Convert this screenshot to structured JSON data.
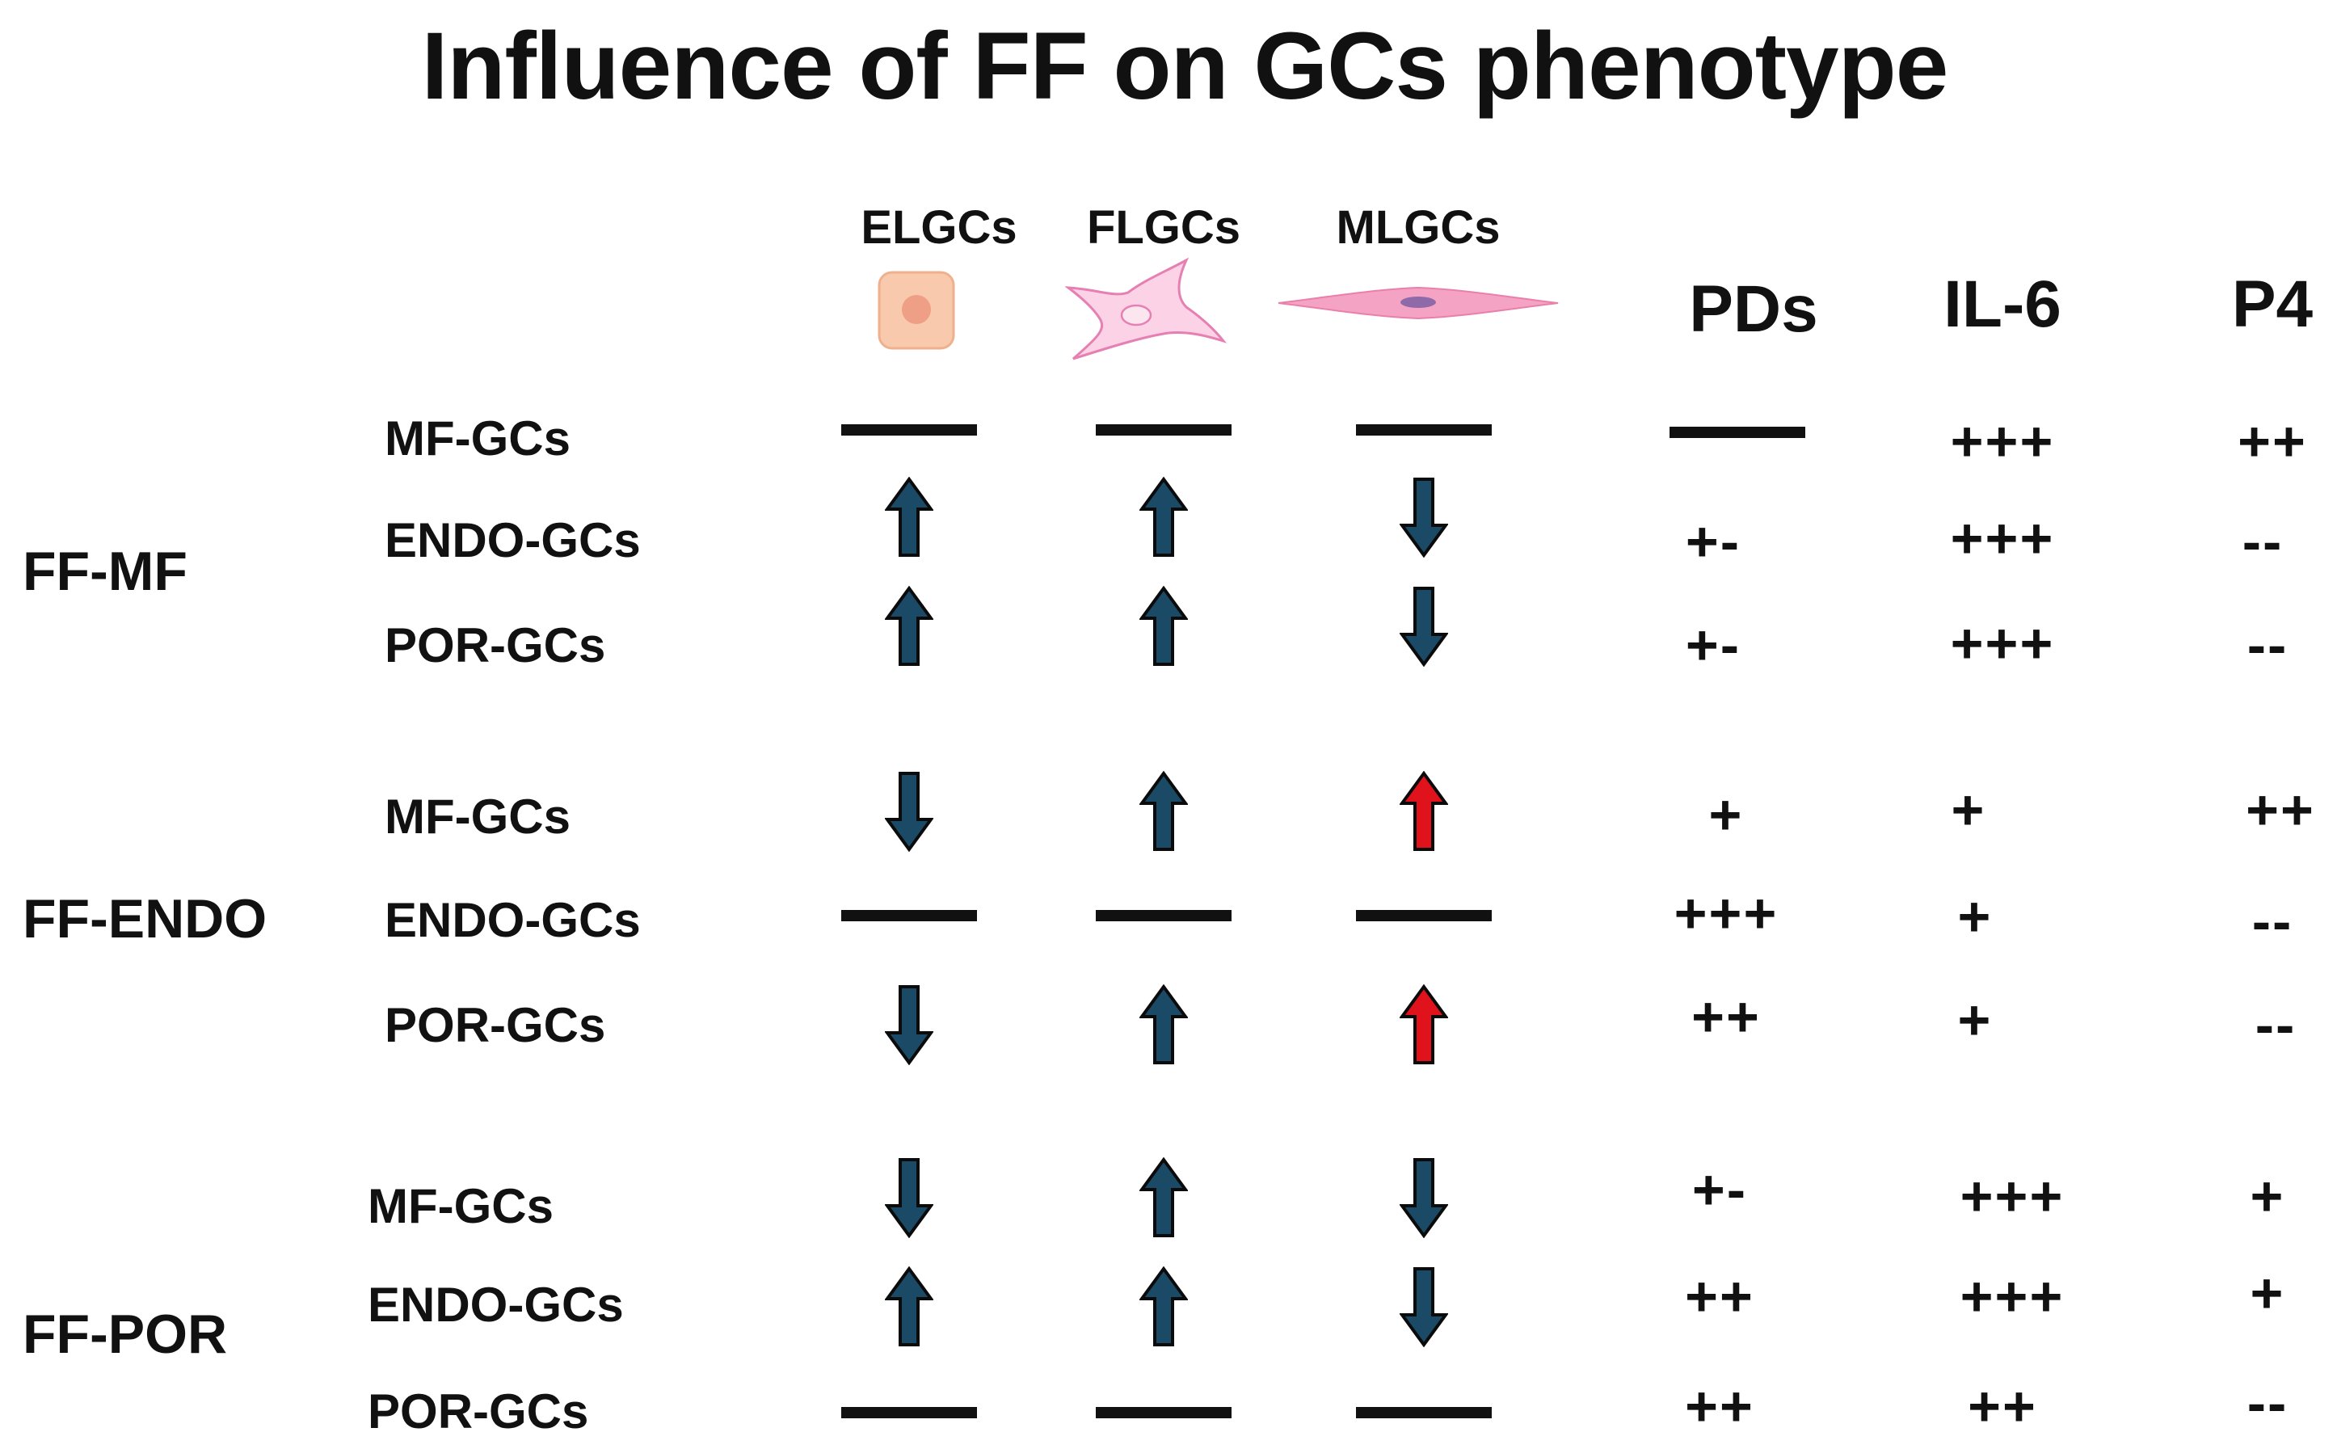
{
  "title": "Influence of FF on GCs phenotype",
  "cell_types": [
    {
      "label": "ELGCs",
      "icon": "epithelial-like-cell-icon"
    },
    {
      "label": "FLGCs",
      "icon": "fibroblast-like-cell-icon"
    },
    {
      "label": "MLGCs",
      "icon": "muscle-like-cell-icon"
    }
  ],
  "metrics": [
    "PDs",
    "IL-6",
    "P4"
  ],
  "colors": {
    "arrow_blue": "#1a4a66",
    "arrow_red": "#e0121b",
    "text": "#111111"
  },
  "groups": [
    {
      "label": "FF-MF",
      "rows": [
        {
          "label": "MF-GCs",
          "cells": [
            "dash",
            "dash",
            "dash"
          ],
          "values": [
            "dash",
            "+++",
            "++"
          ]
        },
        {
          "label": "ENDO-GCs",
          "cells": [
            "up",
            "up",
            "down"
          ],
          "values": [
            "+-",
            "+++",
            "--"
          ]
        },
        {
          "label": "POR-GCs",
          "cells": [
            "up",
            "up",
            "down"
          ],
          "values": [
            "+-",
            "+++",
            "--"
          ]
        }
      ]
    },
    {
      "label": "FF-ENDO",
      "rows": [
        {
          "label": "MF-GCs",
          "cells": [
            "down",
            "up",
            "up-red"
          ],
          "values": [
            "+",
            "+",
            "++"
          ]
        },
        {
          "label": "ENDO-GCs",
          "cells": [
            "dash",
            "dash",
            "dash"
          ],
          "values": [
            "+++",
            "+",
            "--"
          ]
        },
        {
          "label": "POR-GCs",
          "cells": [
            "down",
            "up",
            "up-red"
          ],
          "values": [
            "++",
            "+",
            "--"
          ]
        }
      ]
    },
    {
      "label": "FF-POR",
      "rows": [
        {
          "label": "MF-GCs",
          "cells": [
            "down",
            "up",
            "down"
          ],
          "values": [
            "+-",
            "+++",
            "+"
          ]
        },
        {
          "label": "ENDO-GCs",
          "cells": [
            "up",
            "up",
            "down"
          ],
          "values": [
            "++",
            "+++",
            "+"
          ]
        },
        {
          "label": "POR-GCs",
          "cells": [
            "dash",
            "dash",
            "dash"
          ],
          "values": [
            "++",
            "++",
            "--"
          ]
        }
      ]
    }
  ]
}
